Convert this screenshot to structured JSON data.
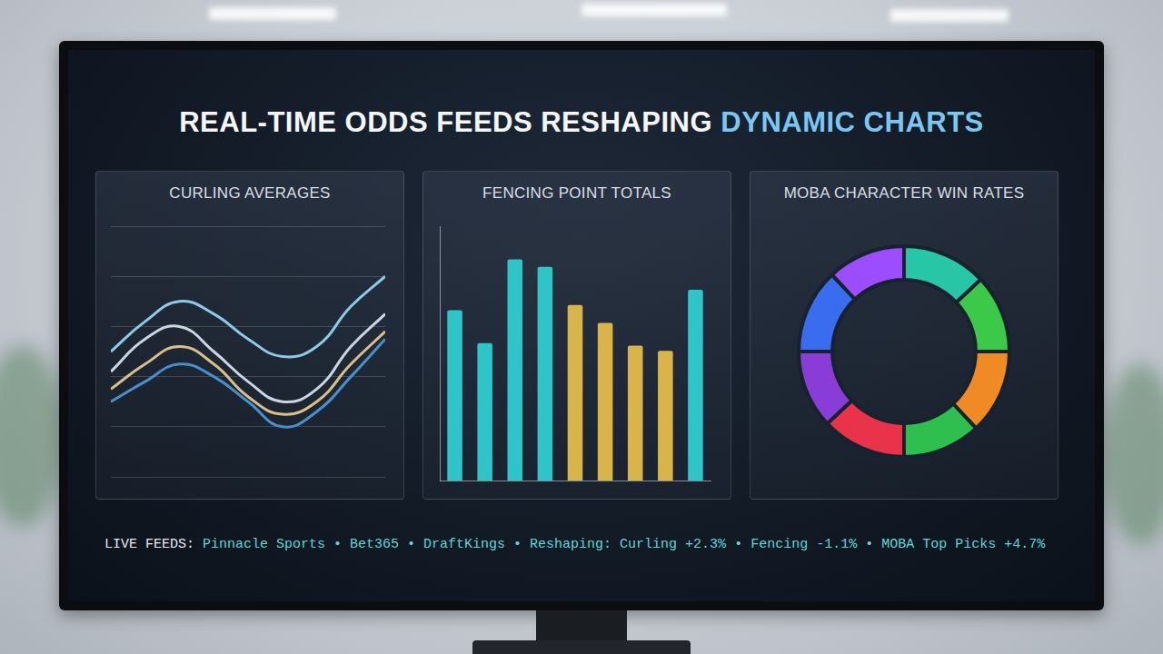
{
  "title": [
    "REAL-TIME ODDS FEEDS RESHAPING",
    "DYNAMIC CHARTS"
  ],
  "chart_data": [
    {
      "type": "line",
      "title": "CURLING AVERAGES",
      "categories": [
        null,
        null,
        null,
        null,
        null,
        null,
        null,
        null,
        null
      ],
      "series": [
        {
          "color": "#8ecae6",
          "values": [
            5.0,
            6.2,
            7.0,
            6.5,
            5.5,
            4.8,
            5.2,
            6.8,
            8.0
          ]
        },
        {
          "color": "#c9d6e3",
          "values": [
            4.2,
            5.5,
            6.0,
            5.0,
            3.8,
            3.0,
            3.5,
            5.2,
            6.5
          ]
        },
        {
          "color": "#d8c08a",
          "values": [
            3.5,
            4.5,
            5.2,
            4.5,
            3.2,
            2.5,
            3.0,
            4.5,
            5.8
          ]
        },
        {
          "color": "#4a8fc9",
          "values": [
            3.0,
            3.8,
            4.5,
            4.0,
            3.0,
            2.0,
            2.6,
            4.0,
            5.5
          ]
        }
      ],
      "ylim": [
        0,
        10
      ],
      "yticks": [
        0,
        2,
        4,
        6,
        8,
        10
      ],
      "grid": true,
      "tick_labels": false
    },
    {
      "type": "bar",
      "title": "FENCING POINT TOTALS",
      "categories": [
        null,
        null,
        null,
        null,
        null,
        null,
        null,
        null,
        null
      ],
      "values": [
        6.7,
        5.4,
        8.7,
        8.4,
        6.9,
        6.2,
        5.3,
        5.1,
        7.5
      ],
      "colors": [
        "#2ec4c8",
        "#2ec4c8",
        "#2ec4c8",
        "#2ec4c8",
        "#d9b44a",
        "#d9b44a",
        "#d9b44a",
        "#d9b44a",
        "#2ec4c8"
      ],
      "ylim": [
        0,
        10
      ],
      "grid": false,
      "tick_labels": false
    },
    {
      "type": "doughnut",
      "title": "MOBA CHARACTER WIN RATES",
      "categories": [
        null,
        null,
        null,
        null,
        null,
        null,
        null,
        null
      ],
      "values": [
        13,
        12,
        13,
        12,
        13,
        12,
        13,
        12
      ],
      "colors": [
        "#26c6a6",
        "#3cc94a",
        "#f08a24",
        "#2fbf4f",
        "#e8334a",
        "#8a3dd6",
        "#3a6cf0",
        "#9b4dff"
      ]
    }
  ],
  "ticker": {
    "label": "LIVE FEEDS:",
    "text": "Pinnacle Sports • Bet365 • DraftKings • Reshaping: Curling +2.3% • Fencing -1.1% • MOBA Top Picks +4.7%"
  }
}
